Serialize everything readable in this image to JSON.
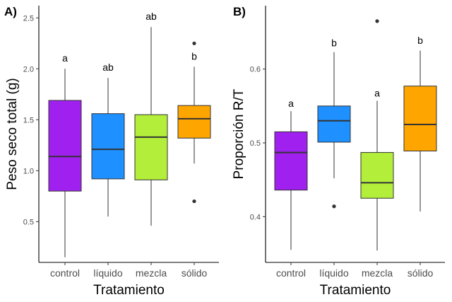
{
  "chart_data": [
    {
      "panel": "A)",
      "type": "boxplot",
      "xlabel": "Tratamiento",
      "ylabel": "Peso seco total (g)",
      "ylim": [
        0.1,
        2.62
      ],
      "yticks": [
        0.5,
        1.0,
        1.5,
        2.0,
        2.5
      ],
      "ytick_labels": [
        "0.5",
        "1.0",
        "1.5",
        "2.0",
        "2.5"
      ],
      "categories": [
        "control",
        "líquido",
        "mezcla",
        "sólido"
      ],
      "colors": [
        "#A020F0",
        "#1E90FF",
        "#B3EE3A",
        "#FFA500"
      ],
      "boxes": [
        {
          "whisker_low": 0.15,
          "q1": 0.8,
          "median": 1.14,
          "q3": 1.69,
          "whisker_high": 2.0,
          "outliers": [],
          "letter": "a",
          "letter_y": 2.07
        },
        {
          "whisker_low": 0.55,
          "q1": 0.92,
          "median": 1.21,
          "q3": 1.56,
          "whisker_high": 1.91,
          "outliers": [],
          "letter": "ab",
          "letter_y": 1.98
        },
        {
          "whisker_low": 0.46,
          "q1": 0.91,
          "median": 1.33,
          "q3": 1.55,
          "whisker_high": 2.41,
          "outliers": [],
          "letter": "ab",
          "letter_y": 2.48
        },
        {
          "whisker_low": 1.07,
          "q1": 1.32,
          "median": 1.51,
          "q3": 1.64,
          "whisker_high": 2.02,
          "outliers": [
            2.25,
            0.7
          ],
          "letter": "b",
          "letter_y": 2.09
        }
      ]
    },
    {
      "panel": "B)",
      "type": "boxplot",
      "xlabel": "Tratamiento",
      "ylabel": "Proporción R/T",
      "ylim": [
        0.338,
        0.686
      ],
      "yticks": [
        0.4,
        0.5,
        0.6
      ],
      "ytick_labels": [
        "0.4",
        "0.5",
        "0.6"
      ],
      "categories": [
        "control",
        "líquido",
        "mezcla",
        "sólido"
      ],
      "colors": [
        "#A020F0",
        "#1E90FF",
        "#B3EE3A",
        "#FFA500"
      ],
      "boxes": [
        {
          "whisker_low": 0.355,
          "q1": 0.436,
          "median": 0.487,
          "q3": 0.515,
          "whisker_high": 0.543,
          "outliers": [],
          "letter": "a",
          "letter_y": 0.549
        },
        {
          "whisker_low": 0.452,
          "q1": 0.501,
          "median": 0.53,
          "q3": 0.55,
          "whisker_high": 0.623,
          "outliers": [
            0.414
          ],
          "letter": "b",
          "letter_y": 0.631
        },
        {
          "whisker_low": 0.354,
          "q1": 0.425,
          "median": 0.446,
          "q3": 0.487,
          "whisker_high": 0.557,
          "outliers": [
            0.665
          ],
          "letter": "a",
          "letter_y": 0.563
        },
        {
          "whisker_low": 0.407,
          "q1": 0.489,
          "median": 0.525,
          "q3": 0.577,
          "whisker_high": 0.625,
          "outliers": [],
          "letter": "b",
          "letter_y": 0.634
        }
      ]
    }
  ]
}
